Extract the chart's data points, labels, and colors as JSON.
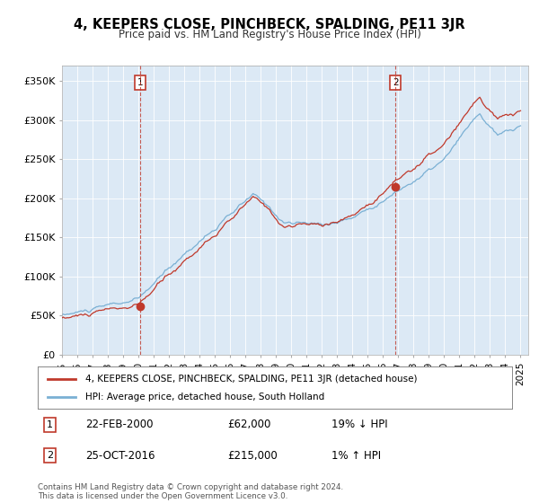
{
  "title": "4, KEEPERS CLOSE, PINCHBECK, SPALDING, PE11 3JR",
  "subtitle": "Price paid vs. HM Land Registry's House Price Index (HPI)",
  "background_color": "#ffffff",
  "plot_bg_color": "#dce9f5",
  "ylim": [
    0,
    370000
  ],
  "yticks": [
    0,
    50000,
    100000,
    150000,
    200000,
    250000,
    300000,
    350000
  ],
  "ytick_labels": [
    "£0",
    "£50K",
    "£100K",
    "£150K",
    "£200K",
    "£250K",
    "£300K",
    "£350K"
  ],
  "sale1_date": 2000.13,
  "sale1_price": 62000,
  "sale1_label": "1",
  "sale2_date": 2016.81,
  "sale2_price": 215000,
  "sale2_label": "2",
  "legend_line1": "4, KEEPERS CLOSE, PINCHBECK, SPALDING, PE11 3JR (detached house)",
  "legend_line2": "HPI: Average price, detached house, South Holland",
  "table_row1_num": "1",
  "table_row1_date": "22-FEB-2000",
  "table_row1_price": "£62,000",
  "table_row1_hpi": "19% ↓ HPI",
  "table_row2_num": "2",
  "table_row2_date": "25-OCT-2016",
  "table_row2_price": "£215,000",
  "table_row2_hpi": "1% ↑ HPI",
  "footer": "Contains HM Land Registry data © Crown copyright and database right 2024.\nThis data is licensed under the Open Government Licence v3.0.",
  "hpi_color": "#7ab0d4",
  "price_color": "#c0392b",
  "dashed_line_color": "#c0392b"
}
